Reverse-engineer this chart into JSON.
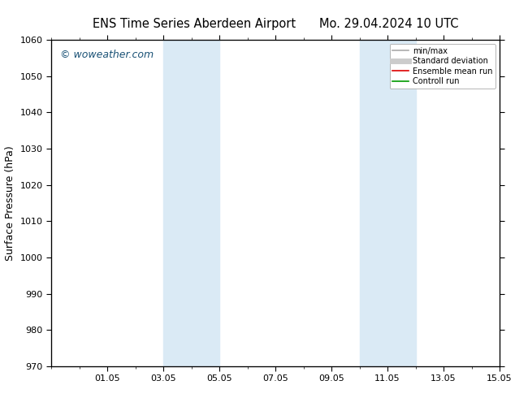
{
  "title_left": "ENS Time Series Aberdeen Airport",
  "title_right": "Mo. 29.04.2024 10 UTC",
  "ylabel": "Surface Pressure (hPa)",
  "ylim": [
    970,
    1060
  ],
  "yticks": [
    970,
    980,
    990,
    1000,
    1010,
    1020,
    1030,
    1040,
    1050,
    1060
  ],
  "xlim": [
    0,
    16
  ],
  "xtick_labels": [
    "01.05",
    "03.05",
    "05.05",
    "07.05",
    "09.05",
    "11.05",
    "13.05",
    "15.05"
  ],
  "xtick_positions": [
    2,
    4,
    6,
    8,
    10,
    12,
    14,
    16
  ],
  "shaded_regions": [
    {
      "x_start": 4.0,
      "x_end": 6.0
    },
    {
      "x_start": 11.0,
      "x_end": 13.0
    }
  ],
  "shaded_color": "#daeaf5",
  "background_color": "#ffffff",
  "plot_bg_color": "#ffffff",
  "watermark_text": "© woweather.com",
  "watermark_color": "#1a5276",
  "legend_items": [
    {
      "label": "min/max",
      "color": "#aaaaaa",
      "lw": 1.2
    },
    {
      "label": "Standard deviation",
      "color": "#cccccc",
      "lw": 5
    },
    {
      "label": "Ensemble mean run",
      "color": "#dd0000",
      "lw": 1.2
    },
    {
      "label": "Controll run",
      "color": "#009900",
      "lw": 1.2
    }
  ],
  "spine_color": "#000000",
  "tick_color": "#000000",
  "title_fontsize": 10.5,
  "ylabel_fontsize": 9,
  "ytick_fontsize": 8,
  "xtick_fontsize": 8,
  "watermark_fontsize": 9,
  "legend_fontsize": 7
}
